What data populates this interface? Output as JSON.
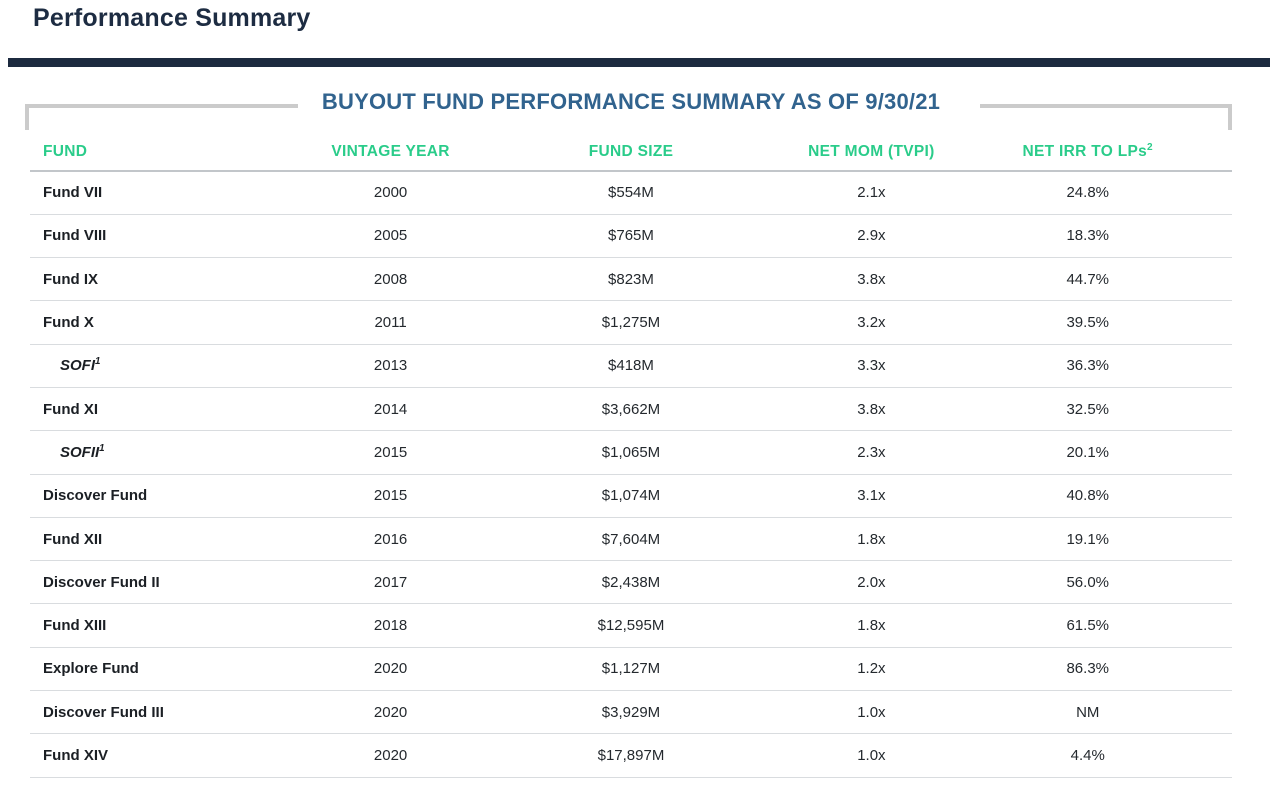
{
  "page": {
    "title": "Performance Summary"
  },
  "colors": {
    "accent": "#2acc8a",
    "heading": "#1d2c42",
    "bar": "#1c2a3f",
    "table-title": "#31638e",
    "bracket": "#cbcbcb"
  },
  "table": {
    "title": "BUYOUT FUND PERFORMANCE SUMMARY AS OF 9/30/21",
    "columns": [
      {
        "label": "FUND"
      },
      {
        "label": "VINTAGE YEAR"
      },
      {
        "label": "FUND SIZE"
      },
      {
        "label": "NET MOM (TVPI)"
      },
      {
        "label": "NET IRR TO LPs",
        "sup": "2"
      }
    ],
    "rows": [
      {
        "fund": "Fund VII",
        "sup": "",
        "sub": false,
        "vintage": "2000",
        "size": "$554M",
        "mom": "2.1x",
        "irr": "24.8%"
      },
      {
        "fund": "Fund VIII",
        "sup": "",
        "sub": false,
        "vintage": "2005",
        "size": "$765M",
        "mom": "2.9x",
        "irr": "18.3%"
      },
      {
        "fund": "Fund IX",
        "sup": "",
        "sub": false,
        "vintage": "2008",
        "size": "$823M",
        "mom": "3.8x",
        "irr": "44.7%"
      },
      {
        "fund": "Fund X",
        "sup": "",
        "sub": false,
        "vintage": "2011",
        "size": "$1,275M",
        "mom": "3.2x",
        "irr": "39.5%"
      },
      {
        "fund": "SOFI",
        "sup": "1",
        "sub": true,
        "vintage": "2013",
        "size": "$418M",
        "mom": "3.3x",
        "irr": "36.3%"
      },
      {
        "fund": "Fund XI",
        "sup": "",
        "sub": false,
        "vintage": "2014",
        "size": "$3,662M",
        "mom": "3.8x",
        "irr": "32.5%"
      },
      {
        "fund": "SOFII",
        "sup": "1",
        "sub": true,
        "vintage": "2015",
        "size": "$1,065M",
        "mom": "2.3x",
        "irr": "20.1%"
      },
      {
        "fund": "Discover Fund",
        "sup": "",
        "sub": false,
        "vintage": "2015",
        "size": "$1,074M",
        "mom": "3.1x",
        "irr": "40.8%"
      },
      {
        "fund": "Fund XII",
        "sup": "",
        "sub": false,
        "vintage": "2016",
        "size": "$7,604M",
        "mom": "1.8x",
        "irr": "19.1%"
      },
      {
        "fund": "Discover Fund II",
        "sup": "",
        "sub": false,
        "vintage": "2017",
        "size": "$2,438M",
        "mom": "2.0x",
        "irr": "56.0%"
      },
      {
        "fund": "Fund XIII",
        "sup": "",
        "sub": false,
        "vintage": "2018",
        "size": "$12,595M",
        "mom": "1.8x",
        "irr": "61.5%"
      },
      {
        "fund": "Explore Fund",
        "sup": "",
        "sub": false,
        "vintage": "2020",
        "size": "$1,127M",
        "mom": "1.2x",
        "irr": "86.3%"
      },
      {
        "fund": "Discover Fund III",
        "sup": "",
        "sub": false,
        "vintage": "2020",
        "size": "$3,929M",
        "mom": "1.0x",
        "irr": "NM"
      },
      {
        "fund": "Fund XIV",
        "sup": "",
        "sub": false,
        "vintage": "2020",
        "size": "$17,897M",
        "mom": "1.0x",
        "irr": "4.4%"
      }
    ]
  }
}
